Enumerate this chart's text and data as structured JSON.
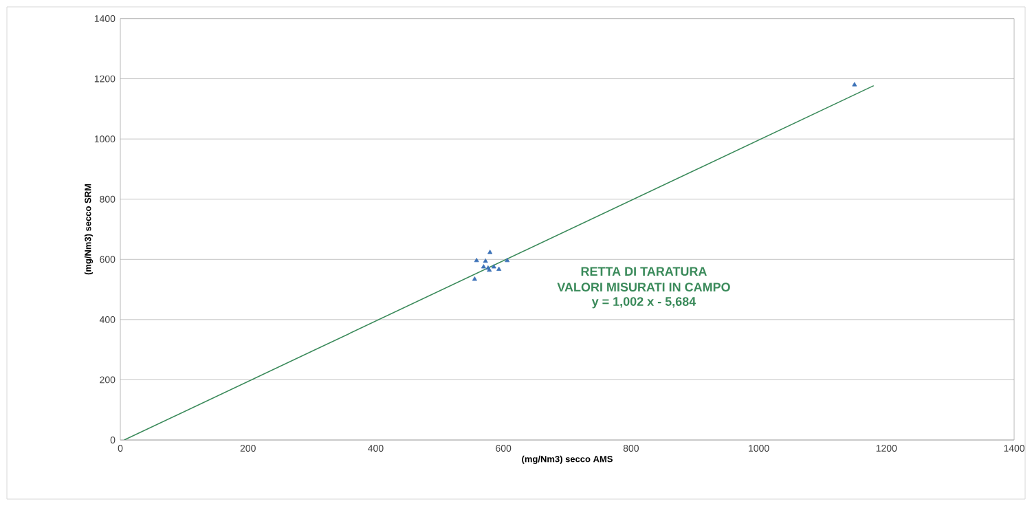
{
  "chart_data": {
    "type": "scatter",
    "xlabel": "(mg/Nm3) secco AMS",
    "ylabel": "(mg/Nm3) secco SRM",
    "xlim": [
      0,
      1400
    ],
    "ylim": [
      0,
      1400
    ],
    "xticks": [
      0,
      200,
      400,
      600,
      800,
      1000,
      1200,
      1400
    ],
    "yticks": [
      0,
      200,
      400,
      600,
      800,
      1000,
      1200,
      1400
    ],
    "grid": "y",
    "series": [
      {
        "color": "#3d72b8",
        "marker": "triangle",
        "x": [
          579,
          558,
          572,
          606,
          576,
          593,
          555,
          569,
          585,
          578,
          1150
        ],
        "values": [
          623,
          596,
          594,
          596,
          571,
          567,
          534,
          575,
          575,
          564,
          1180
        ]
      },
      {
        "type": "line",
        "color": "#3a8a5a",
        "marker": "none",
        "line_style": "solid",
        "x": [
          6,
          1180
        ],
        "values": [
          0,
          1177
        ]
      }
    ],
    "annotations": [
      "RETTA DI TARATURA",
      "VALORI MISURATI IN CAMPO",
      "y = 1,002 x - 5,684"
    ]
  }
}
